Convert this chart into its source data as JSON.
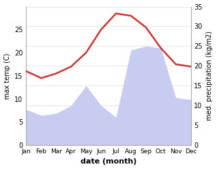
{
  "months": [
    "Jan",
    "Feb",
    "Mar",
    "Apr",
    "May",
    "Jun",
    "Jul",
    "Aug",
    "Sep",
    "Oct",
    "Nov",
    "Dec"
  ],
  "max_temp": [
    16.0,
    14.5,
    15.5,
    17.0,
    20.0,
    25.0,
    28.5,
    28.0,
    25.5,
    21.0,
    17.5,
    17.0
  ],
  "precipitation": [
    9.0,
    7.5,
    8.0,
    10.0,
    15.0,
    10.0,
    7.0,
    24.0,
    25.0,
    24.5,
    12.0,
    11.5
  ],
  "temp_color": "#cc3333",
  "precip_fill_color": "#c8ccf0",
  "left_ylim": [
    0,
    30
  ],
  "right_ylim": [
    0,
    35
  ],
  "left_yticks": [
    0,
    5,
    10,
    15,
    20,
    25
  ],
  "right_yticks": [
    0,
    5,
    10,
    15,
    20,
    25,
    30,
    35
  ],
  "xlabel": "date (month)",
  "ylabel_left": "max temp (C)",
  "ylabel_right": "med. precipitation (kg/m2)",
  "background_color": "#ffffff"
}
